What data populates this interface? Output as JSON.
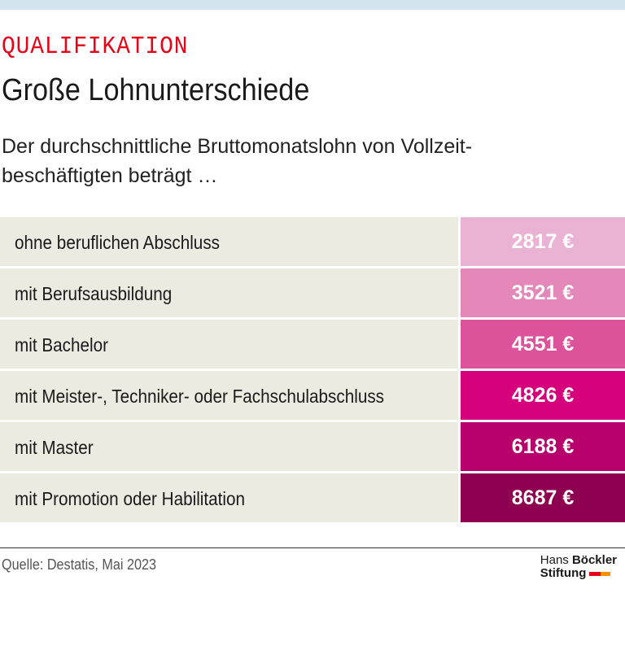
{
  "header": {
    "kicker": "QUALIFIKATION",
    "title": "Große Lohnunterschiede",
    "subtitle": [
      "Der durchschnittliche Bruttomonatslohn von Vollzeit-",
      "beschäftigten beträgt …"
    ]
  },
  "table": {
    "rows": [
      {
        "label": "ohne beruflichen Abschluss",
        "value": "2817 €",
        "color": "#ebb3d3"
      },
      {
        "label": "mit Berufsausbildung",
        "value": "3521 €",
        "color": "#e388b9"
      },
      {
        "label": "mit Bachelor",
        "value": "4551 €",
        "color": "#dc529b"
      },
      {
        "label": "mit Meister-, Techniker- oder Fachschulabschluss",
        "value": "4826 €",
        "color": "#d6007d"
      },
      {
        "label": "mit Master",
        "value": "6188 €",
        "color": "#b8006c"
      },
      {
        "label": "mit Promotion oder Habilitation",
        "value": "8687 €",
        "color": "#8e0050"
      }
    ]
  },
  "footer": {
    "source": "Quelle: Destatis, Mai 2023",
    "logo": {
      "first": "Hans",
      "second": "Böckler",
      "third": "Stiftung"
    }
  }
}
